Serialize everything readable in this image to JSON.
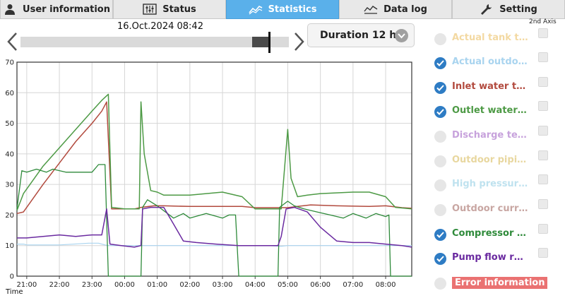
{
  "tabs": [
    {
      "label": "User information",
      "icon": "user-icon",
      "active": false
    },
    {
      "label": "Status",
      "icon": "sliders-icon",
      "active": false
    },
    {
      "label": "Statistics",
      "icon": "trend-chart-icon",
      "active": true
    },
    {
      "label": "Data log",
      "icon": "data-log-icon",
      "active": false
    },
    {
      "label": "Setting",
      "icon": "wrench-icon",
      "active": false
    }
  ],
  "header": {
    "datetime": "16.Oct.2024 08:42",
    "duration": "Duration 12 h",
    "second_axis": "2nd Axis"
  },
  "slider": {
    "position_fraction": 0.92
  },
  "legend": [
    {
      "label": "Actual tank t…",
      "color": "#f3d9a2",
      "checked": false
    },
    {
      "label": "Actual outdo…",
      "color": "#a9d4ef",
      "checked": true
    },
    {
      "label": "Inlet water t…",
      "color": "#b24a3e",
      "checked": true
    },
    {
      "label": "Outlet water …",
      "color": "#4d9a45",
      "checked": true
    },
    {
      "label": "Discharge te…",
      "color": "#c7a2dc",
      "checked": false
    },
    {
      "label": "Outdoor pipi…",
      "color": "#e8d79f",
      "checked": false
    },
    {
      "label": "High pressur…",
      "color": "#bfe2ef",
      "checked": false
    },
    {
      "label": "Outdoor curr…",
      "color": "#c8a6a2",
      "checked": false
    },
    {
      "label": "Compressor f…",
      "color": "#2e8a3a",
      "checked": true
    },
    {
      "label": "Pump flow ra…",
      "color": "#6a2aa0",
      "checked": true
    },
    {
      "label": "Error information",
      "color": "#ea7272",
      "checked": false
    }
  ],
  "chart_data": {
    "type": "line",
    "xlabel": "Time",
    "ylim": [
      0,
      70
    ],
    "yticks": [
      0,
      10,
      20,
      30,
      40,
      50,
      60,
      70
    ],
    "xticks": [
      "21:00",
      "22:00",
      "23:00",
      "00:00",
      "01:00",
      "02:00",
      "03:00",
      "04:00",
      "05:00",
      "06:00",
      "07:00",
      "08:00"
    ],
    "xtick_hours": [
      21,
      22,
      23,
      24,
      25,
      26,
      27,
      28,
      29,
      30,
      31,
      32
    ],
    "x_unit": "hours of day (values past 24 are after midnight)",
    "grid": true,
    "series": [
      {
        "name": "Actual outdo…",
        "color": "#a9d4ef",
        "width": 1.2,
        "x": [
          20.7,
          20.9,
          21.0,
          22.0,
          22.9,
          23.2,
          23.4,
          23.5,
          24.5,
          25.5,
          26.5,
          27.5,
          28.4,
          28.8,
          29.0,
          29.5,
          30.5,
          31.5,
          32.5,
          32.8
        ],
        "y": [
          10.5,
          10.5,
          10.2,
          10.2,
          10.8,
          10.8,
          10.2,
          10.0,
          10.0,
          10.0,
          10.0,
          10.0,
          10.0,
          9.8,
          10.0,
          10.0,
          10.0,
          10.0,
          10.0,
          10.0
        ]
      },
      {
        "name": "Inlet water t…",
        "color": "#b24a3e",
        "width": 1.5,
        "x": [
          20.7,
          20.9,
          21.1,
          21.5,
          22.0,
          22.5,
          23.0,
          23.3,
          23.45,
          23.6,
          24.3,
          24.5,
          24.9,
          25.2,
          26.0,
          27.0,
          27.6,
          28.0,
          28.7,
          29.0,
          29.3,
          29.7,
          30.5,
          31.5,
          32.0,
          32.5,
          32.8
        ],
        "y": [
          20.5,
          21.0,
          24.0,
          30.0,
          37.0,
          44.0,
          50.0,
          54.0,
          57.0,
          22.0,
          22.0,
          22.5,
          23.0,
          23.0,
          22.8,
          22.8,
          22.8,
          22.4,
          22.4,
          22.4,
          22.8,
          23.3,
          23.0,
          22.8,
          23.0,
          22.4,
          22.2
        ]
      },
      {
        "name": "Outlet water …",
        "color": "#4d9a45",
        "width": 1.5,
        "x": [
          20.7,
          20.9,
          21.1,
          21.5,
          22.0,
          22.5,
          23.0,
          23.3,
          23.5,
          23.6,
          24.0,
          24.2,
          24.45,
          24.5,
          24.6,
          24.8,
          25.0,
          25.2,
          26.0,
          27.0,
          27.6,
          28.0,
          28.7,
          28.8,
          28.9,
          29.0,
          29.1,
          29.3,
          29.6,
          30.0,
          31.0,
          31.5,
          32.0,
          32.3,
          32.8
        ],
        "y": [
          21.5,
          27.0,
          30.0,
          36.0,
          42.0,
          48.0,
          54.0,
          57.5,
          59.5,
          22.5,
          22.0,
          22.0,
          22.0,
          57.0,
          40.0,
          28.0,
          27.5,
          26.5,
          26.5,
          27.5,
          26.0,
          22.0,
          22.0,
          22.0,
          35.0,
          48.0,
          32.0,
          26.0,
          26.5,
          27.0,
          27.5,
          27.5,
          26.0,
          22.5,
          22.0
        ]
      },
      {
        "name": "Compressor f…",
        "color": "#2e8a3a",
        "width": 1.3,
        "x": [
          20.7,
          20.85,
          21.0,
          21.3,
          21.6,
          21.8,
          22.2,
          22.5,
          23.0,
          23.2,
          23.4,
          23.5,
          23.55,
          24.5,
          24.55,
          24.7,
          25.0,
          25.5,
          25.8,
          26.0,
          26.5,
          27.0,
          27.2,
          27.4,
          27.5,
          28.7,
          28.75,
          29.0,
          29.2,
          29.5,
          29.9,
          30.3,
          30.7,
          31.0,
          31.4,
          31.7,
          32.0,
          32.1,
          32.15,
          32.8
        ],
        "y": [
          22.0,
          34.5,
          34.0,
          35.0,
          34.0,
          35.0,
          34.0,
          34.0,
          34.0,
          36.5,
          36.5,
          0.0,
          0.0,
          0.0,
          22.5,
          25.0,
          23.0,
          19.0,
          20.5,
          19.0,
          20.5,
          19.0,
          20.0,
          20.0,
          0.0,
          0.0,
          22.5,
          24.5,
          23.0,
          22.0,
          21.0,
          20.0,
          19.0,
          20.5,
          19.0,
          20.5,
          19.5,
          20.0,
          0.0,
          0.0
        ]
      },
      {
        "name": "Pump flow ra…",
        "color": "#6a2aa0",
        "width": 1.5,
        "x": [
          20.7,
          21.0,
          21.5,
          22.0,
          22.5,
          23.0,
          23.3,
          23.45,
          23.55,
          23.9,
          24.3,
          24.5,
          24.55,
          24.8,
          25.2,
          25.5,
          25.8,
          26.2,
          26.8,
          27.5,
          28.0,
          28.7,
          28.8,
          28.95,
          29.2,
          29.6,
          30.0,
          30.5,
          31.0,
          31.5,
          32.0,
          32.5,
          32.8
        ],
        "y": [
          12.5,
          12.5,
          13.0,
          13.5,
          13.0,
          13.5,
          13.5,
          22.0,
          10.5,
          10.0,
          9.5,
          10.0,
          22.0,
          22.5,
          22.5,
          17.0,
          11.5,
          11.0,
          10.5,
          10.0,
          10.0,
          10.0,
          13.0,
          22.0,
          22.5,
          21.0,
          16.0,
          11.5,
          11.0,
          11.0,
          10.5,
          10.0,
          9.5
        ]
      }
    ]
  }
}
